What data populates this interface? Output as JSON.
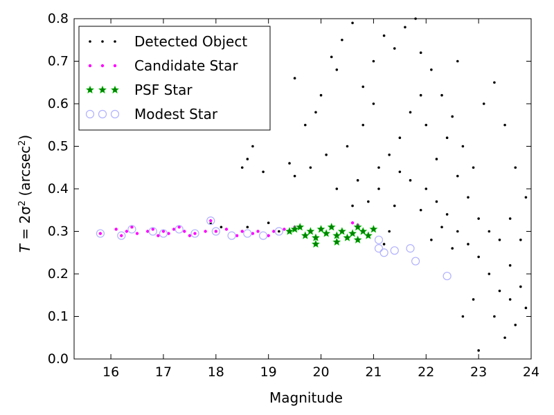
{
  "chart_data": {
    "type": "scatter",
    "xlabel": "Magnitude",
    "ylabel_parts": {
      "lhs": "T",
      "eq": " = 2σ",
      "sup1": "2",
      "unit": " (arcsec",
      "sup2": "2",
      "close": ")"
    },
    "xlim": [
      15.3,
      24.0
    ],
    "ylim": [
      0.0,
      0.8
    ],
    "xticks": [
      "16",
      "17",
      "18",
      "19",
      "20",
      "21",
      "22",
      "23",
      "24"
    ],
    "yticks": [
      "0.0",
      "0.1",
      "0.2",
      "0.3",
      "0.4",
      "0.5",
      "0.6",
      "0.7",
      "0.8"
    ],
    "grid": false,
    "legend_position": "upper-left",
    "colors": {
      "detected": "#000000",
      "candidate": "#ff00ff",
      "psf": "#008000",
      "modest": "#b0b0ff"
    },
    "series": [
      {
        "name": "Detected Object",
        "marker": "dot",
        "points": [
          [
            17.9,
            0.32
          ],
          [
            18.1,
            0.31
          ],
          [
            18.4,
            0.29
          ],
          [
            18.6,
            0.31
          ],
          [
            19.0,
            0.32
          ],
          [
            19.2,
            0.3
          ],
          [
            18.5,
            0.45
          ],
          [
            18.6,
            0.47
          ],
          [
            18.7,
            0.5
          ],
          [
            18.9,
            0.44
          ],
          [
            19.4,
            0.46
          ],
          [
            19.5,
            0.43
          ],
          [
            19.8,
            0.45
          ],
          [
            19.7,
            0.55
          ],
          [
            19.9,
            0.58
          ],
          [
            20.0,
            0.62
          ],
          [
            19.5,
            0.66
          ],
          [
            20.2,
            0.71
          ],
          [
            20.4,
            0.75
          ],
          [
            20.6,
            0.79
          ],
          [
            20.3,
            0.68
          ],
          [
            20.8,
            0.64
          ],
          [
            21.0,
            0.7
          ],
          [
            21.2,
            0.76
          ],
          [
            21.4,
            0.73
          ],
          [
            21.6,
            0.78
          ],
          [
            21.8,
            0.8
          ],
          [
            20.5,
            0.5
          ],
          [
            20.7,
            0.42
          ],
          [
            20.9,
            0.37
          ],
          [
            21.1,
            0.4
          ],
          [
            21.3,
            0.48
          ],
          [
            21.5,
            0.52
          ],
          [
            21.7,
            0.58
          ],
          [
            21.9,
            0.62
          ],
          [
            22.0,
            0.55
          ],
          [
            22.2,
            0.47
          ],
          [
            22.4,
            0.52
          ],
          [
            22.6,
            0.43
          ],
          [
            22.8,
            0.38
          ],
          [
            23.0,
            0.33
          ],
          [
            23.2,
            0.3
          ],
          [
            23.4,
            0.28
          ],
          [
            23.6,
            0.22
          ],
          [
            23.8,
            0.17
          ],
          [
            23.9,
            0.12
          ],
          [
            23.7,
            0.08
          ],
          [
            23.5,
            0.05
          ],
          [
            23.0,
            0.02
          ],
          [
            22.7,
            0.1
          ],
          [
            22.9,
            0.14
          ],
          [
            22.5,
            0.26
          ],
          [
            22.3,
            0.31
          ],
          [
            22.1,
            0.28
          ],
          [
            21.9,
            0.35
          ],
          [
            21.7,
            0.42
          ],
          [
            21.5,
            0.44
          ],
          [
            21.3,
            0.3
          ],
          [
            21.2,
            0.27
          ],
          [
            22.0,
            0.4
          ],
          [
            22.2,
            0.37
          ],
          [
            22.4,
            0.34
          ],
          [
            22.6,
            0.3
          ],
          [
            22.8,
            0.27
          ],
          [
            23.0,
            0.24
          ],
          [
            23.2,
            0.2
          ],
          [
            23.4,
            0.16
          ],
          [
            23.6,
            0.14
          ],
          [
            23.3,
            0.1
          ],
          [
            22.9,
            0.45
          ],
          [
            22.7,
            0.5
          ],
          [
            22.5,
            0.57
          ],
          [
            22.3,
            0.62
          ],
          [
            22.1,
            0.68
          ],
          [
            21.9,
            0.72
          ],
          [
            22.6,
            0.7
          ],
          [
            23.1,
            0.6
          ],
          [
            23.3,
            0.65
          ],
          [
            23.5,
            0.55
          ],
          [
            23.7,
            0.45
          ],
          [
            23.9,
            0.38
          ],
          [
            23.6,
            0.33
          ],
          [
            23.8,
            0.28
          ],
          [
            20.1,
            0.48
          ],
          [
            20.3,
            0.4
          ],
          [
            20.6,
            0.36
          ],
          [
            20.8,
            0.55
          ],
          [
            21.0,
            0.6
          ],
          [
            21.1,
            0.45
          ],
          [
            21.4,
            0.36
          ]
        ]
      },
      {
        "name": "Candidate Star",
        "marker": "small-circle",
        "points": [
          [
            15.8,
            0.295
          ],
          [
            16.1,
            0.305
          ],
          [
            16.2,
            0.29
          ],
          [
            16.3,
            0.3
          ],
          [
            16.4,
            0.31
          ],
          [
            16.5,
            0.295
          ],
          [
            16.7,
            0.3
          ],
          [
            16.8,
            0.305
          ],
          [
            16.9,
            0.29
          ],
          [
            17.0,
            0.3
          ],
          [
            17.1,
            0.295
          ],
          [
            17.2,
            0.305
          ],
          [
            17.3,
            0.31
          ],
          [
            17.4,
            0.3
          ],
          [
            17.5,
            0.29
          ],
          [
            17.6,
            0.295
          ],
          [
            17.8,
            0.3
          ],
          [
            17.9,
            0.325
          ],
          [
            18.0,
            0.3
          ],
          [
            18.2,
            0.305
          ],
          [
            18.4,
            0.29
          ],
          [
            18.5,
            0.3
          ],
          [
            18.7,
            0.295
          ],
          [
            18.8,
            0.3
          ],
          [
            19.0,
            0.29
          ],
          [
            19.1,
            0.3
          ],
          [
            19.3,
            0.305
          ],
          [
            19.5,
            0.31
          ],
          [
            20.6,
            0.32
          ],
          [
            20.7,
            0.315
          ]
        ]
      },
      {
        "name": "PSF Star",
        "marker": "star",
        "points": [
          [
            19.4,
            0.3
          ],
          [
            19.5,
            0.305
          ],
          [
            19.6,
            0.31
          ],
          [
            19.7,
            0.29
          ],
          [
            19.8,
            0.3
          ],
          [
            19.9,
            0.285
          ],
          [
            20.0,
            0.305
          ],
          [
            20.1,
            0.295
          ],
          [
            20.2,
            0.31
          ],
          [
            20.3,
            0.29
          ],
          [
            20.4,
            0.3
          ],
          [
            20.5,
            0.285
          ],
          [
            20.6,
            0.295
          ],
          [
            20.7,
            0.31
          ],
          [
            20.8,
            0.3
          ],
          [
            20.9,
            0.29
          ],
          [
            21.0,
            0.305
          ],
          [
            19.9,
            0.27
          ],
          [
            20.3,
            0.275
          ],
          [
            20.7,
            0.28
          ]
        ]
      },
      {
        "name": "Modest Star",
        "marker": "open-circle",
        "points": [
          [
            15.8,
            0.295
          ],
          [
            16.2,
            0.29
          ],
          [
            16.4,
            0.305
          ],
          [
            16.8,
            0.3
          ],
          [
            17.0,
            0.295
          ],
          [
            17.3,
            0.305
          ],
          [
            17.6,
            0.295
          ],
          [
            17.9,
            0.325
          ],
          [
            18.0,
            0.3
          ],
          [
            18.3,
            0.29
          ],
          [
            18.6,
            0.295
          ],
          [
            18.9,
            0.29
          ],
          [
            19.2,
            0.3
          ],
          [
            21.1,
            0.28
          ],
          [
            21.1,
            0.26
          ],
          [
            21.2,
            0.25
          ],
          [
            21.4,
            0.255
          ],
          [
            21.7,
            0.26
          ],
          [
            21.8,
            0.23
          ],
          [
            22.4,
            0.195
          ]
        ]
      }
    ]
  }
}
